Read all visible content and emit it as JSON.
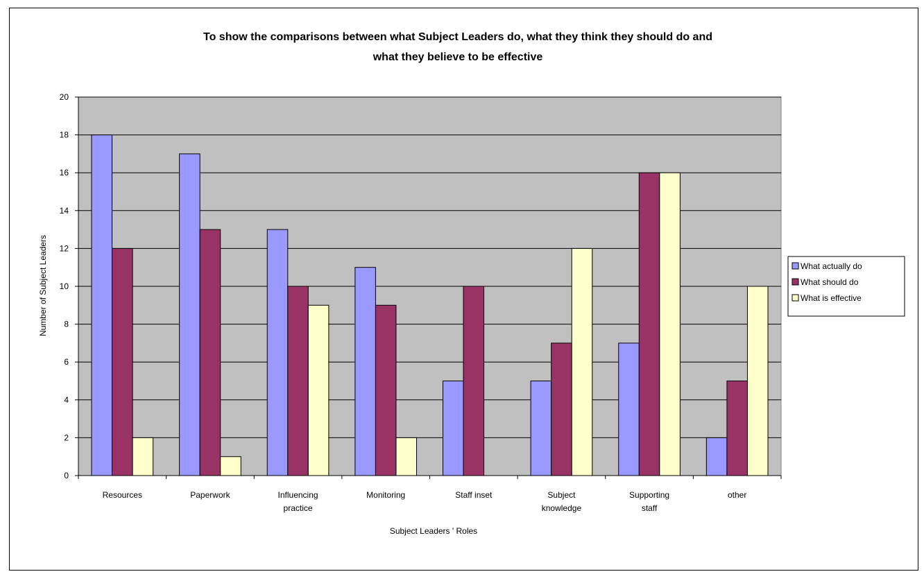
{
  "chart_data": {
    "type": "bar",
    "title_lines": [
      "To show the comparisons between what Subject Leaders do, what they think they should do and",
      "what they believe to be effective"
    ],
    "xlabel": "Subject Leaders ' Roles",
    "ylabel": "Number of Subject Leaders",
    "ylim": [
      0,
      20
    ],
    "yticks": [
      0,
      2,
      4,
      6,
      8,
      10,
      12,
      14,
      16,
      18,
      20
    ],
    "categories": [
      [
        "Resources"
      ],
      [
        "Paperwork"
      ],
      [
        "Influencing",
        "practice"
      ],
      [
        "Monitoring"
      ],
      [
        "Staff inset"
      ],
      [
        "Subject",
        "knowledge"
      ],
      [
        "Supporting",
        "staff"
      ],
      [
        "other"
      ]
    ],
    "series": [
      {
        "name": "What actually do",
        "color": "#9999ff",
        "values": [
          18,
          17,
          13,
          11,
          5,
          5,
          7,
          2
        ]
      },
      {
        "name": "What should do",
        "color": "#993366",
        "values": [
          12,
          13,
          10,
          9,
          10,
          7,
          16,
          5
        ]
      },
      {
        "name": "What is effective",
        "color": "#ffffcc",
        "values": [
          2,
          1,
          9,
          2,
          0,
          12,
          16,
          10
        ]
      }
    ],
    "plot_background": "#c0c0c0",
    "grid": true,
    "legend_position": "right"
  }
}
